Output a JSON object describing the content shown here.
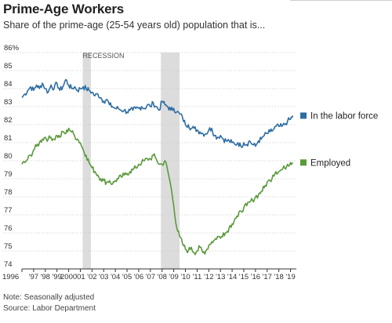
{
  "header": {
    "title": "Prime-Age Workers",
    "subtitle": "Share of the prime-age (25-54 years old) population that is..."
  },
  "footer": {
    "note": "Note: Seasonally adjusted",
    "source": "Source: Labor Department"
  },
  "colors": {
    "labor_force": "#2e6da4",
    "employed": "#5a9a3a",
    "recession": "#dcdcdc",
    "grid": "#cccccc",
    "axis": "#333333"
  },
  "chart_data": {
    "type": "line",
    "title": "Prime-Age Workers",
    "subtitle": "Share of the prime-age (25-54 years old) population that is...",
    "ylim": [
      74,
      86
    ],
    "xlim": [
      1996,
      2019.5
    ],
    "y_ticks": [
      "86%",
      "85",
      "84",
      "83",
      "82",
      "81",
      "80",
      "79",
      "78",
      "77",
      "76",
      "75",
      "74"
    ],
    "x_ticks": [
      "1996",
      "'97",
      "'98",
      "'99",
      "2000",
      "'01",
      "'02",
      "'03",
      "'04",
      "'05",
      "'06",
      "'07",
      "'08",
      "'09",
      "'10",
      "'11",
      "'12",
      "'13",
      "'14",
      "'15",
      "'16",
      "'17",
      "'18",
      "'19"
    ],
    "recessions": [
      {
        "label": "RECESSION",
        "start": 2001.2,
        "end": 2001.9
      },
      {
        "label": "",
        "start": 2007.9,
        "end": 2009.5
      }
    ],
    "grid": true,
    "legend_placement": "right, next to line ends",
    "series": [
      {
        "name": "In the labor force",
        "key": "labor_force",
        "x": [
          1996.0,
          1996.25,
          1996.5,
          1996.75,
          1997.0,
          1997.25,
          1997.5,
          1997.75,
          1998.0,
          1998.25,
          1998.5,
          1998.75,
          1999.0,
          1999.25,
          1999.5,
          1999.75,
          2000.0,
          2000.25,
          2000.5,
          2000.75,
          2001.0,
          2001.25,
          2001.5,
          2001.75,
          2002.0,
          2002.25,
          2002.5,
          2002.75,
          2003.0,
          2003.25,
          2003.5,
          2003.75,
          2004.0,
          2004.25,
          2004.5,
          2004.75,
          2005.0,
          2005.25,
          2005.5,
          2005.75,
          2006.0,
          2006.25,
          2006.5,
          2006.75,
          2007.0,
          2007.25,
          2007.5,
          2007.75,
          2008.0,
          2008.25,
          2008.5,
          2008.75,
          2009.0,
          2009.25,
          2009.5,
          2009.75,
          2010.0,
          2010.25,
          2010.5,
          2010.75,
          2011.0,
          2011.25,
          2011.5,
          2011.75,
          2012.0,
          2012.25,
          2012.5,
          2012.75,
          2013.0,
          2013.25,
          2013.5,
          2013.75,
          2014.0,
          2014.25,
          2014.5,
          2014.75,
          2015.0,
          2015.25,
          2015.5,
          2015.75,
          2016.0,
          2016.25,
          2016.5,
          2016.75,
          2017.0,
          2017.25,
          2017.5,
          2017.75,
          2018.0,
          2018.25,
          2018.5,
          2018.75,
          2019.0,
          2019.2
        ],
        "values": [
          83.5,
          83.7,
          83.9,
          84.1,
          83.9,
          84.2,
          84.0,
          84.3,
          84.0,
          83.8,
          84.2,
          84.0,
          84.3,
          83.9,
          84.1,
          84.5,
          84.2,
          84.0,
          84.1,
          83.9,
          84.0,
          84.1,
          84.0,
          83.9,
          83.8,
          83.6,
          83.7,
          83.5,
          83.3,
          83.4,
          83.1,
          83.0,
          82.9,
          82.9,
          82.8,
          82.8,
          82.7,
          82.8,
          82.8,
          82.9,
          82.9,
          83.0,
          82.9,
          83.1,
          83.0,
          83.2,
          83.0,
          82.8,
          83.3,
          83.1,
          83.0,
          82.8,
          82.9,
          82.7,
          82.6,
          82.4,
          82.0,
          82.0,
          81.8,
          81.8,
          81.7,
          81.6,
          81.5,
          81.5,
          81.7,
          81.8,
          81.4,
          81.3,
          81.4,
          81.2,
          81.1,
          81.1,
          81.0,
          80.9,
          81.0,
          80.8,
          81.0,
          80.9,
          81.1,
          80.9,
          80.8,
          81.1,
          81.2,
          81.4,
          81.5,
          81.6,
          81.7,
          81.9,
          81.9,
          81.9,
          82.0,
          82.2,
          82.3,
          82.5
        ]
      },
      {
        "name": "Employed",
        "key": "employed",
        "x": [
          1996.0,
          1996.25,
          1996.5,
          1996.75,
          1997.0,
          1997.25,
          1997.5,
          1997.75,
          1998.0,
          1998.25,
          1998.5,
          1998.75,
          1999.0,
          1999.25,
          1999.5,
          1999.75,
          2000.0,
          2000.25,
          2000.5,
          2000.75,
          2001.0,
          2001.25,
          2001.5,
          2001.75,
          2002.0,
          2002.25,
          2002.5,
          2002.75,
          2003.0,
          2003.25,
          2003.5,
          2003.75,
          2004.0,
          2004.25,
          2004.5,
          2004.75,
          2005.0,
          2005.25,
          2005.5,
          2005.75,
          2006.0,
          2006.25,
          2006.5,
          2006.75,
          2007.0,
          2007.25,
          2007.5,
          2007.75,
          2008.0,
          2008.25,
          2008.5,
          2008.75,
          2009.0,
          2009.25,
          2009.5,
          2009.75,
          2010.0,
          2010.25,
          2010.5,
          2010.75,
          2011.0,
          2011.25,
          2011.5,
          2011.75,
          2012.0,
          2012.25,
          2012.5,
          2012.75,
          2013.0,
          2013.25,
          2013.5,
          2013.75,
          2014.0,
          2014.25,
          2014.5,
          2014.75,
          2015.0,
          2015.25,
          2015.5,
          2015.75,
          2016.0,
          2016.25,
          2016.5,
          2016.75,
          2017.0,
          2017.25,
          2017.5,
          2017.75,
          2018.0,
          2018.25,
          2018.5,
          2018.75,
          2019.0,
          2019.2
        ],
        "values": [
          79.8,
          79.9,
          80.1,
          80.3,
          80.6,
          80.8,
          81.0,
          81.2,
          81.3,
          81.2,
          81.3,
          81.2,
          81.4,
          81.3,
          81.6,
          81.5,
          81.8,
          81.6,
          81.4,
          81.2,
          81.0,
          80.6,
          80.3,
          79.9,
          79.6,
          79.4,
          79.2,
          79.0,
          78.9,
          78.8,
          78.9,
          78.7,
          78.9,
          79.0,
          79.1,
          79.2,
          79.3,
          79.4,
          79.5,
          79.6,
          79.8,
          79.9,
          80.0,
          80.1,
          80.1,
          80.3,
          80.1,
          79.8,
          79.8,
          80.0,
          79.4,
          78.6,
          77.5,
          76.3,
          75.8,
          75.4,
          75.1,
          75.0,
          75.2,
          74.9,
          75.0,
          75.2,
          74.9,
          75.0,
          75.3,
          75.5,
          75.6,
          75.8,
          75.7,
          76.0,
          76.0,
          76.3,
          76.5,
          76.8,
          76.9,
          77.2,
          77.4,
          77.5,
          77.7,
          77.8,
          78.0,
          78.1,
          78.3,
          78.5,
          78.8,
          78.9,
          79.2,
          79.4,
          79.4,
          79.5,
          79.6,
          79.8,
          79.9,
          79.9
        ]
      }
    ]
  }
}
